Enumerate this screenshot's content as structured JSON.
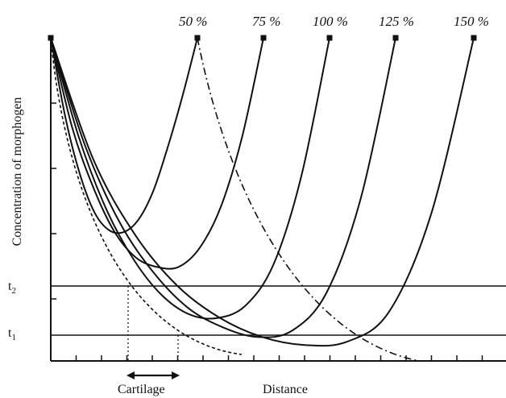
{
  "chart_data": {
    "type": "line",
    "title": "",
    "xlabel": "Distance",
    "ylabel": "Concentration of morphogen",
    "source_labels": [
      "50 %",
      "75 %",
      "100 %",
      "125 %",
      "150 %"
    ],
    "thresholds": [
      {
        "label": "t",
        "subscript": "2",
        "value": 0.27
      },
      {
        "label": "t",
        "subscript": "1",
        "value": 0.08
      }
    ],
    "cartilage_label": "Cartilage",
    "series": [
      {
        "source": "50 %",
        "x": [
          0,
          0.1,
          0.2,
          0.3,
          0.4,
          0.5,
          0.6,
          0.7,
          0.8,
          0.9,
          1.0
        ],
        "y": [
          1.0,
          0.75,
          0.57,
          0.45,
          0.395,
          0.39,
          0.43,
          0.52,
          0.66,
          0.82,
          1.0
        ]
      },
      {
        "source": "75 %",
        "x": [
          0,
          0.1,
          0.2,
          0.3,
          0.4,
          0.5,
          0.6,
          0.7,
          0.8,
          0.9,
          1.0
        ],
        "y": [
          1.0,
          0.72,
          0.53,
          0.39,
          0.31,
          0.28,
          0.28,
          0.34,
          0.47,
          0.69,
          1.0
        ]
      },
      {
        "source": "100 %",
        "x": [
          0,
          0.1,
          0.2,
          0.3,
          0.4,
          0.5,
          0.6,
          0.7,
          0.8,
          0.9,
          1.0
        ],
        "y": [
          1.0,
          0.69,
          0.46,
          0.3,
          0.19,
          0.13,
          0.12,
          0.16,
          0.29,
          0.57,
          1.0
        ]
      },
      {
        "source": "125 %",
        "x": [
          0,
          0.1,
          0.2,
          0.3,
          0.4,
          0.5,
          0.6,
          0.7,
          0.8,
          0.9,
          1.0
        ],
        "y": [
          1.0,
          0.66,
          0.42,
          0.26,
          0.15,
          0.09,
          0.06,
          0.08,
          0.2,
          0.5,
          1.0
        ]
      },
      {
        "source": "150 %",
        "x": [
          0,
          0.1,
          0.2,
          0.3,
          0.4,
          0.5,
          0.6,
          0.7,
          0.8,
          0.9,
          1.0
        ],
        "y": [
          1.0,
          0.62,
          0.38,
          0.22,
          0.12,
          0.06,
          0.035,
          0.045,
          0.14,
          0.45,
          1.0
        ]
      }
    ]
  }
}
